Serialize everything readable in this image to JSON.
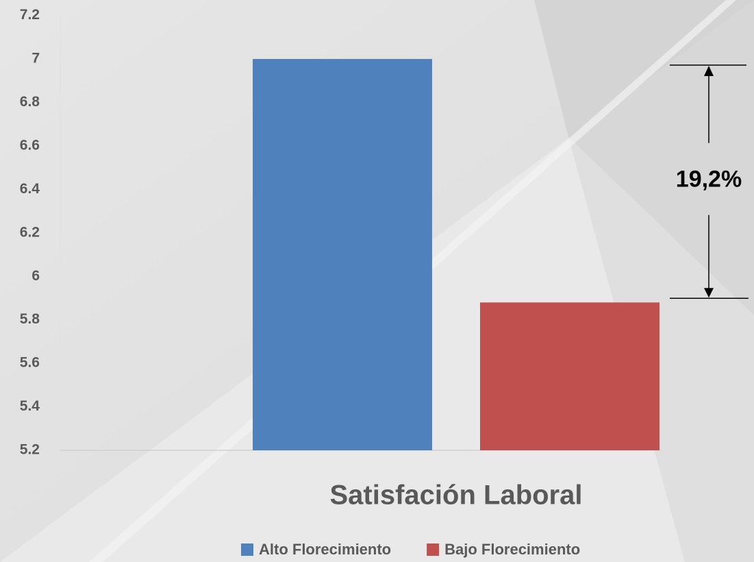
{
  "chart_data": {
    "type": "bar",
    "categories": [
      "Satisfación Laboral"
    ],
    "series": [
      {
        "name": "Alto Florecimiento",
        "color": "#4f81bd",
        "values": [
          7.0
        ]
      },
      {
        "name": "Bajo Florecimiento",
        "color": "#c0504d",
        "values": [
          5.88
        ]
      }
    ],
    "ylim": [
      5.2,
      7.2
    ],
    "yticks": [
      5.2,
      5.4,
      5.6,
      5.8,
      6,
      6.2,
      6.4,
      6.6,
      6.8,
      7,
      7.2
    ],
    "annotation": "19,2%",
    "legend": "bottom"
  }
}
